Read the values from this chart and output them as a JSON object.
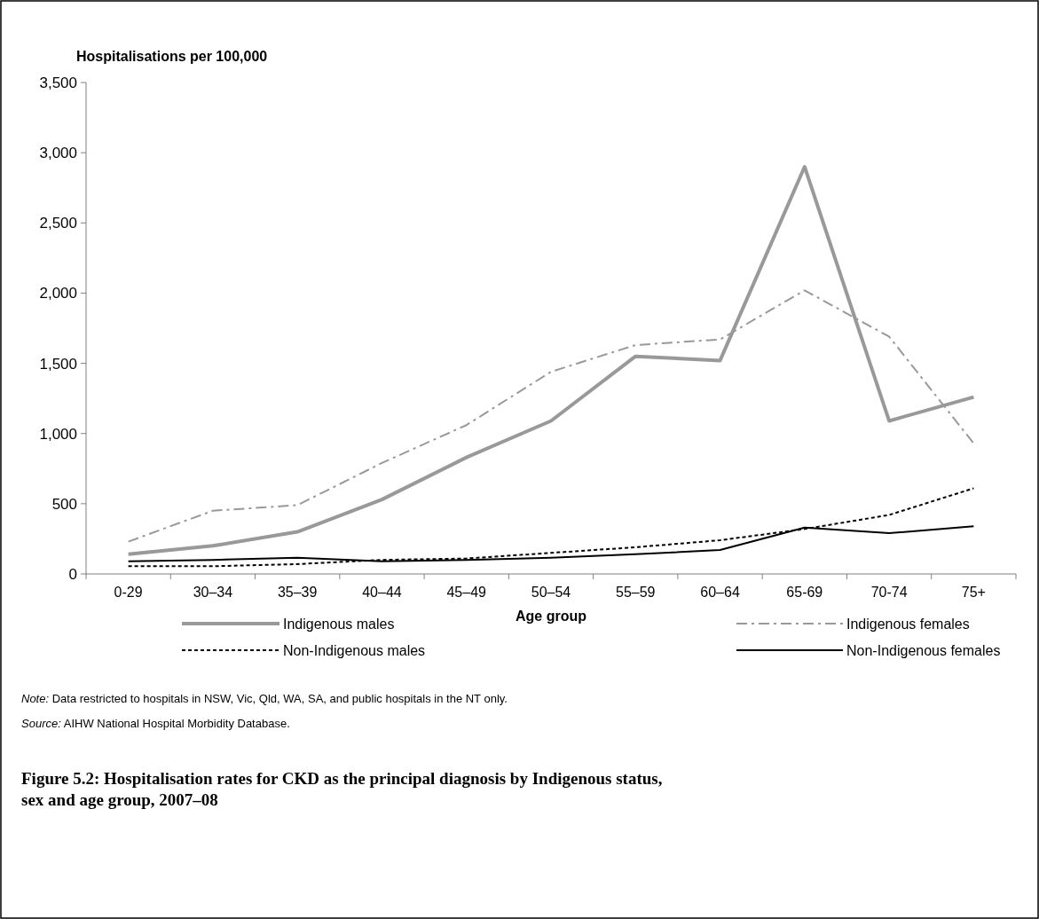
{
  "chart_data": {
    "type": "line",
    "title": "Figure 5.2: Hospitalisation rates for CKD as the principal diagnosis by Indigenous status, sex and age group, 2007–08",
    "ylabel": "Hospitalisations per 100,000",
    "xlabel": "Age group",
    "categories": [
      "0-29",
      "30–34",
      "35–39",
      "40–44",
      "45–49",
      "50–54",
      "55–59",
      "60–64",
      "65-69",
      "70-74",
      "75+"
    ],
    "ylim": [
      0,
      3500
    ],
    "yticks": [
      0,
      {
        "value": 500,
        "label": "500"
      },
      {
        "value": 1000,
        "label": "1,000"
      },
      {
        "value": 1500,
        "label": "1,500"
      },
      {
        "value": 2000,
        "label": "2,000"
      },
      {
        "value": 2500,
        "label": "2,500"
      },
      {
        "value": 3000,
        "label": "3,000"
      },
      {
        "value": 3500,
        "label": "3,500"
      }
    ],
    "grid": false,
    "legend": "bottom",
    "marker": "none",
    "series": [
      {
        "name": "Indigenous males",
        "color": "#999999",
        "line_style": "solid",
        "values": [
          140,
          200,
          300,
          530,
          830,
          1090,
          1550,
          1520,
          2900,
          1090,
          1260
        ]
      },
      {
        "name": "Indigenous females",
        "color": "#999999",
        "line_style": "dashed",
        "values": [
          230,
          450,
          490,
          790,
          1060,
          1440,
          1630,
          1670,
          2020,
          1690,
          930
        ]
      },
      {
        "name": "Non-Indigenous males",
        "color": "#000000",
        "line_style": "dotted",
        "values": [
          55,
          55,
          70,
          100,
          110,
          150,
          190,
          240,
          320,
          420,
          610
        ]
      },
      {
        "name": "Non-Indigenous females",
        "color": "#000000",
        "line_style": "solid",
        "values": [
          90,
          100,
          115,
          90,
          100,
          115,
          140,
          170,
          330,
          290,
          340
        ]
      }
    ],
    "annotations": [
      "Note: Data restricted to hospitals in NSW, Vic, Qld, WA, SA, and public hospitals in the NT only.",
      "Source: AIHW National Hospital Morbidity Database."
    ]
  }
}
